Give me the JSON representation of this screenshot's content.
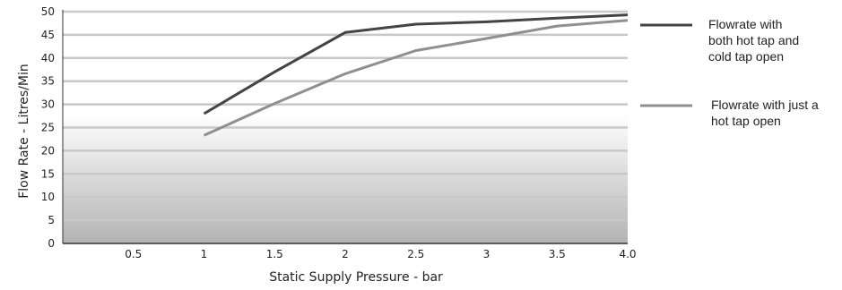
{
  "chart_data": {
    "type": "line",
    "xlabel": "Static Supply Pressure - bar",
    "ylabel": "Flow Rate - Litres/Min",
    "xlim": [
      0,
      4.0
    ],
    "ylim": [
      0,
      50
    ],
    "x_ticks": [
      "0.5",
      "1",
      "1.5",
      "2",
      "2.5",
      "3",
      "3.5",
      "4.0"
    ],
    "y_ticks": [
      "0",
      "5",
      "10",
      "15",
      "20",
      "25",
      "30",
      "35",
      "40",
      "45",
      "50"
    ],
    "grid": "horizontal",
    "legend_position": "right",
    "series": [
      {
        "name_lines": [
          "Flowrate with",
          "both hot tap and",
          "cold tap open"
        ],
        "color": "#444444",
        "x": [
          1,
          1.5,
          2,
          2.5,
          3,
          3.5,
          4.0
        ],
        "y": [
          28,
          37,
          45.5,
          47.3,
          47.8,
          48.6,
          49.3
        ]
      },
      {
        "name_lines": [
          "Flowrate with just a",
          "hot tap open"
        ],
        "color": "#8f8f8f",
        "x": [
          1,
          1.5,
          2,
          2.5,
          3,
          3.5,
          4.0
        ],
        "y": [
          23.3,
          30.2,
          36.6,
          41.6,
          44.2,
          46.9,
          48.1
        ]
      }
    ]
  }
}
